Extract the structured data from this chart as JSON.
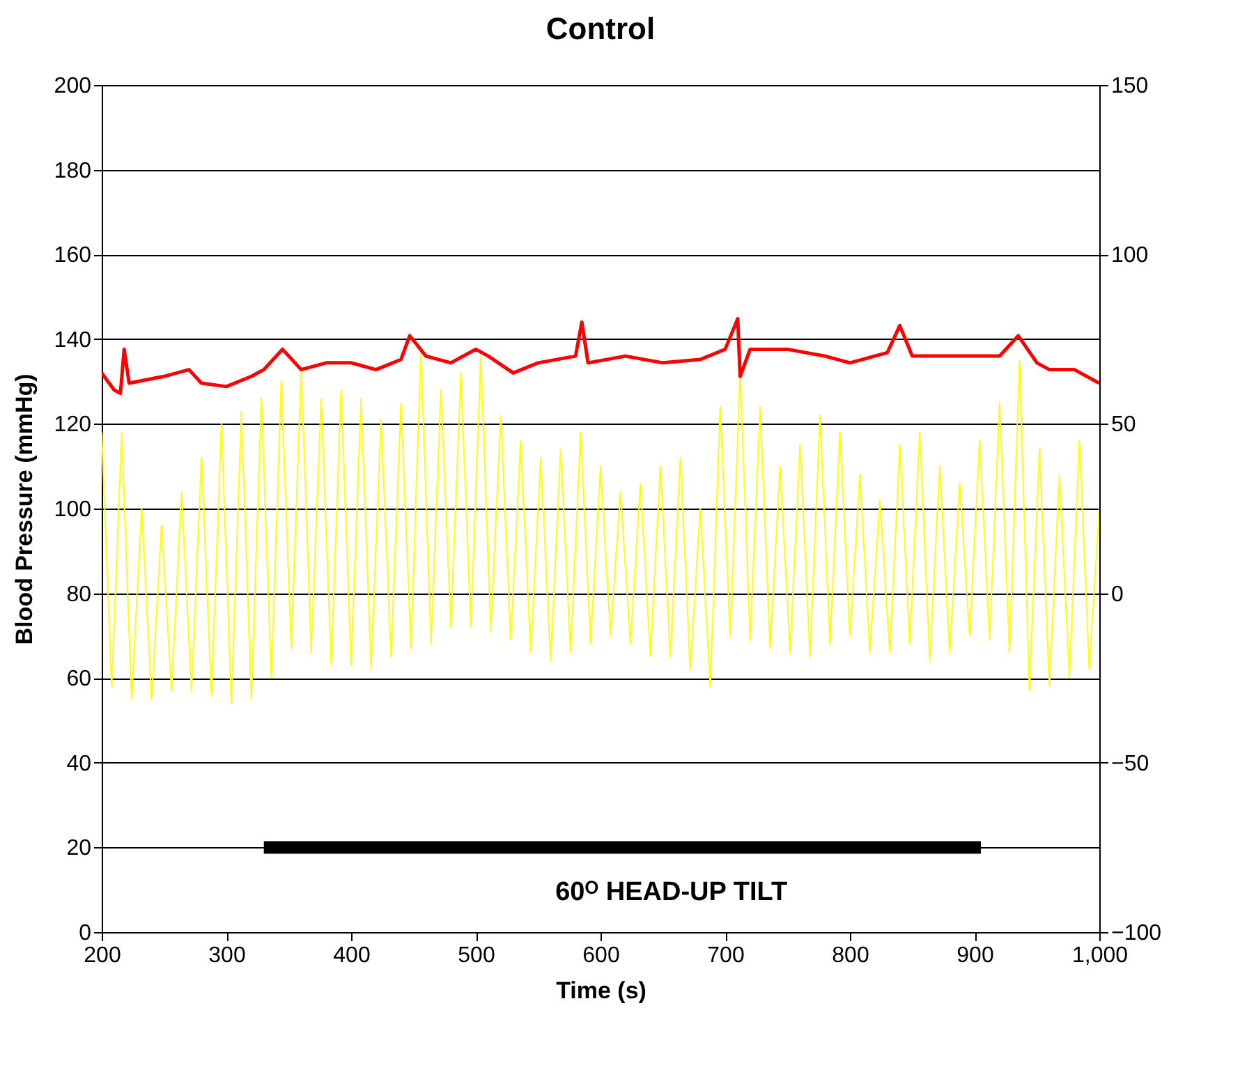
{
  "chart_data": {
    "type": "line",
    "title": "Control",
    "xlabel": "Time (s)",
    "ylabel": "Blood Pressure (mmHg)",
    "xlim": [
      200,
      1000
    ],
    "xticks": [
      200,
      300,
      400,
      500,
      600,
      700,
      800,
      900,
      {
        "value": 1000,
        "label": "1,000"
      }
    ],
    "ylim": [
      0,
      200
    ],
    "yticks": [
      0,
      20,
      40,
      60,
      80,
      100,
      120,
      140,
      160,
      180,
      200
    ],
    "y2lim": [
      -100,
      150
    ],
    "y2ticks": [
      -100,
      -50,
      0,
      50,
      100,
      150
    ],
    "grid": "y",
    "marker": "none",
    "line_style": "solid",
    "annotations": [
      "60ᴼ HEAD-UP TILT"
    ],
    "series": [
      {
        "color": "#ffff00",
        "x": [
          200,
          208,
          216,
          224,
          232,
          240,
          248,
          256,
          264,
          272,
          280,
          288,
          296,
          304,
          312,
          320,
          328,
          336,
          344,
          352,
          360,
          368,
          376,
          384,
          392,
          400,
          408,
          416,
          424,
          432,
          440,
          448,
          456,
          464,
          472,
          480,
          488,
          496,
          504,
          512,
          520,
          528,
          536,
          544,
          552,
          560,
          568,
          576,
          584,
          592,
          600,
          608,
          616,
          624,
          632,
          640,
          648,
          656,
          664,
          672,
          680,
          688,
          696,
          704,
          712,
          720,
          728,
          736,
          744,
          752,
          760,
          768,
          776,
          784,
          792,
          800,
          808,
          816,
          824,
          832,
          840,
          848,
          856,
          864,
          872,
          880,
          888,
          896,
          904,
          912,
          920,
          928,
          936,
          944,
          952,
          960,
          968,
          976,
          984,
          992,
          1000
        ],
        "values": [
          118,
          58,
          118,
          55,
          100,
          55,
          96,
          57,
          104,
          57,
          112,
          56,
          120,
          54,
          123,
          55,
          126,
          60,
          130,
          67,
          133,
          66,
          126,
          63,
          128,
          63,
          126,
          62,
          121,
          65,
          125,
          67,
          138,
          68,
          128,
          72,
          132,
          72,
          136,
          71,
          122,
          69,
          116,
          66,
          112,
          64,
          114,
          66,
          118,
          68,
          110,
          70,
          104,
          68,
          106,
          65,
          110,
          65,
          112,
          62,
          100,
          58,
          124,
          70,
          132,
          69,
          124,
          67,
          110,
          66,
          115,
          65,
          122,
          68,
          118,
          70,
          108,
          66,
          102,
          66,
          115,
          68,
          118,
          64,
          110,
          66,
          106,
          70,
          116,
          69,
          125,
          66,
          135,
          57,
          114,
          58,
          108,
          60,
          116,
          62,
          100
        ]
      },
      {
        "color": "#ff0000",
        "axis": "y2",
        "x": [
          200,
          210,
          215,
          218,
          222,
          250,
          270,
          280,
          300,
          320,
          330,
          345,
          360,
          380,
          400,
          420,
          440,
          447,
          460,
          480,
          500,
          510,
          530,
          550,
          580,
          585,
          590,
          620,
          650,
          680,
          700,
          710,
          712,
          720,
          750,
          780,
          800,
          830,
          840,
          850,
          880,
          900,
          920,
          935,
          950,
          960,
          980,
          1000
        ],
        "values": [
          65,
          60,
          59,
          72,
          62,
          64,
          66,
          62,
          61,
          64,
          66,
          72,
          66,
          68,
          68,
          66,
          69,
          76,
          70,
          68,
          72,
          70,
          65,
          68,
          70,
          80,
          68,
          70,
          68,
          69,
          72,
          81,
          64,
          72,
          72,
          70,
          68,
          71,
          79,
          70,
          70,
          70,
          70,
          76,
          68,
          66,
          66,
          62
        ]
      },
      {
        "color": "#000000",
        "x": [
          330,
          905
        ],
        "values": [
          20,
          20
        ]
      }
    ]
  }
}
